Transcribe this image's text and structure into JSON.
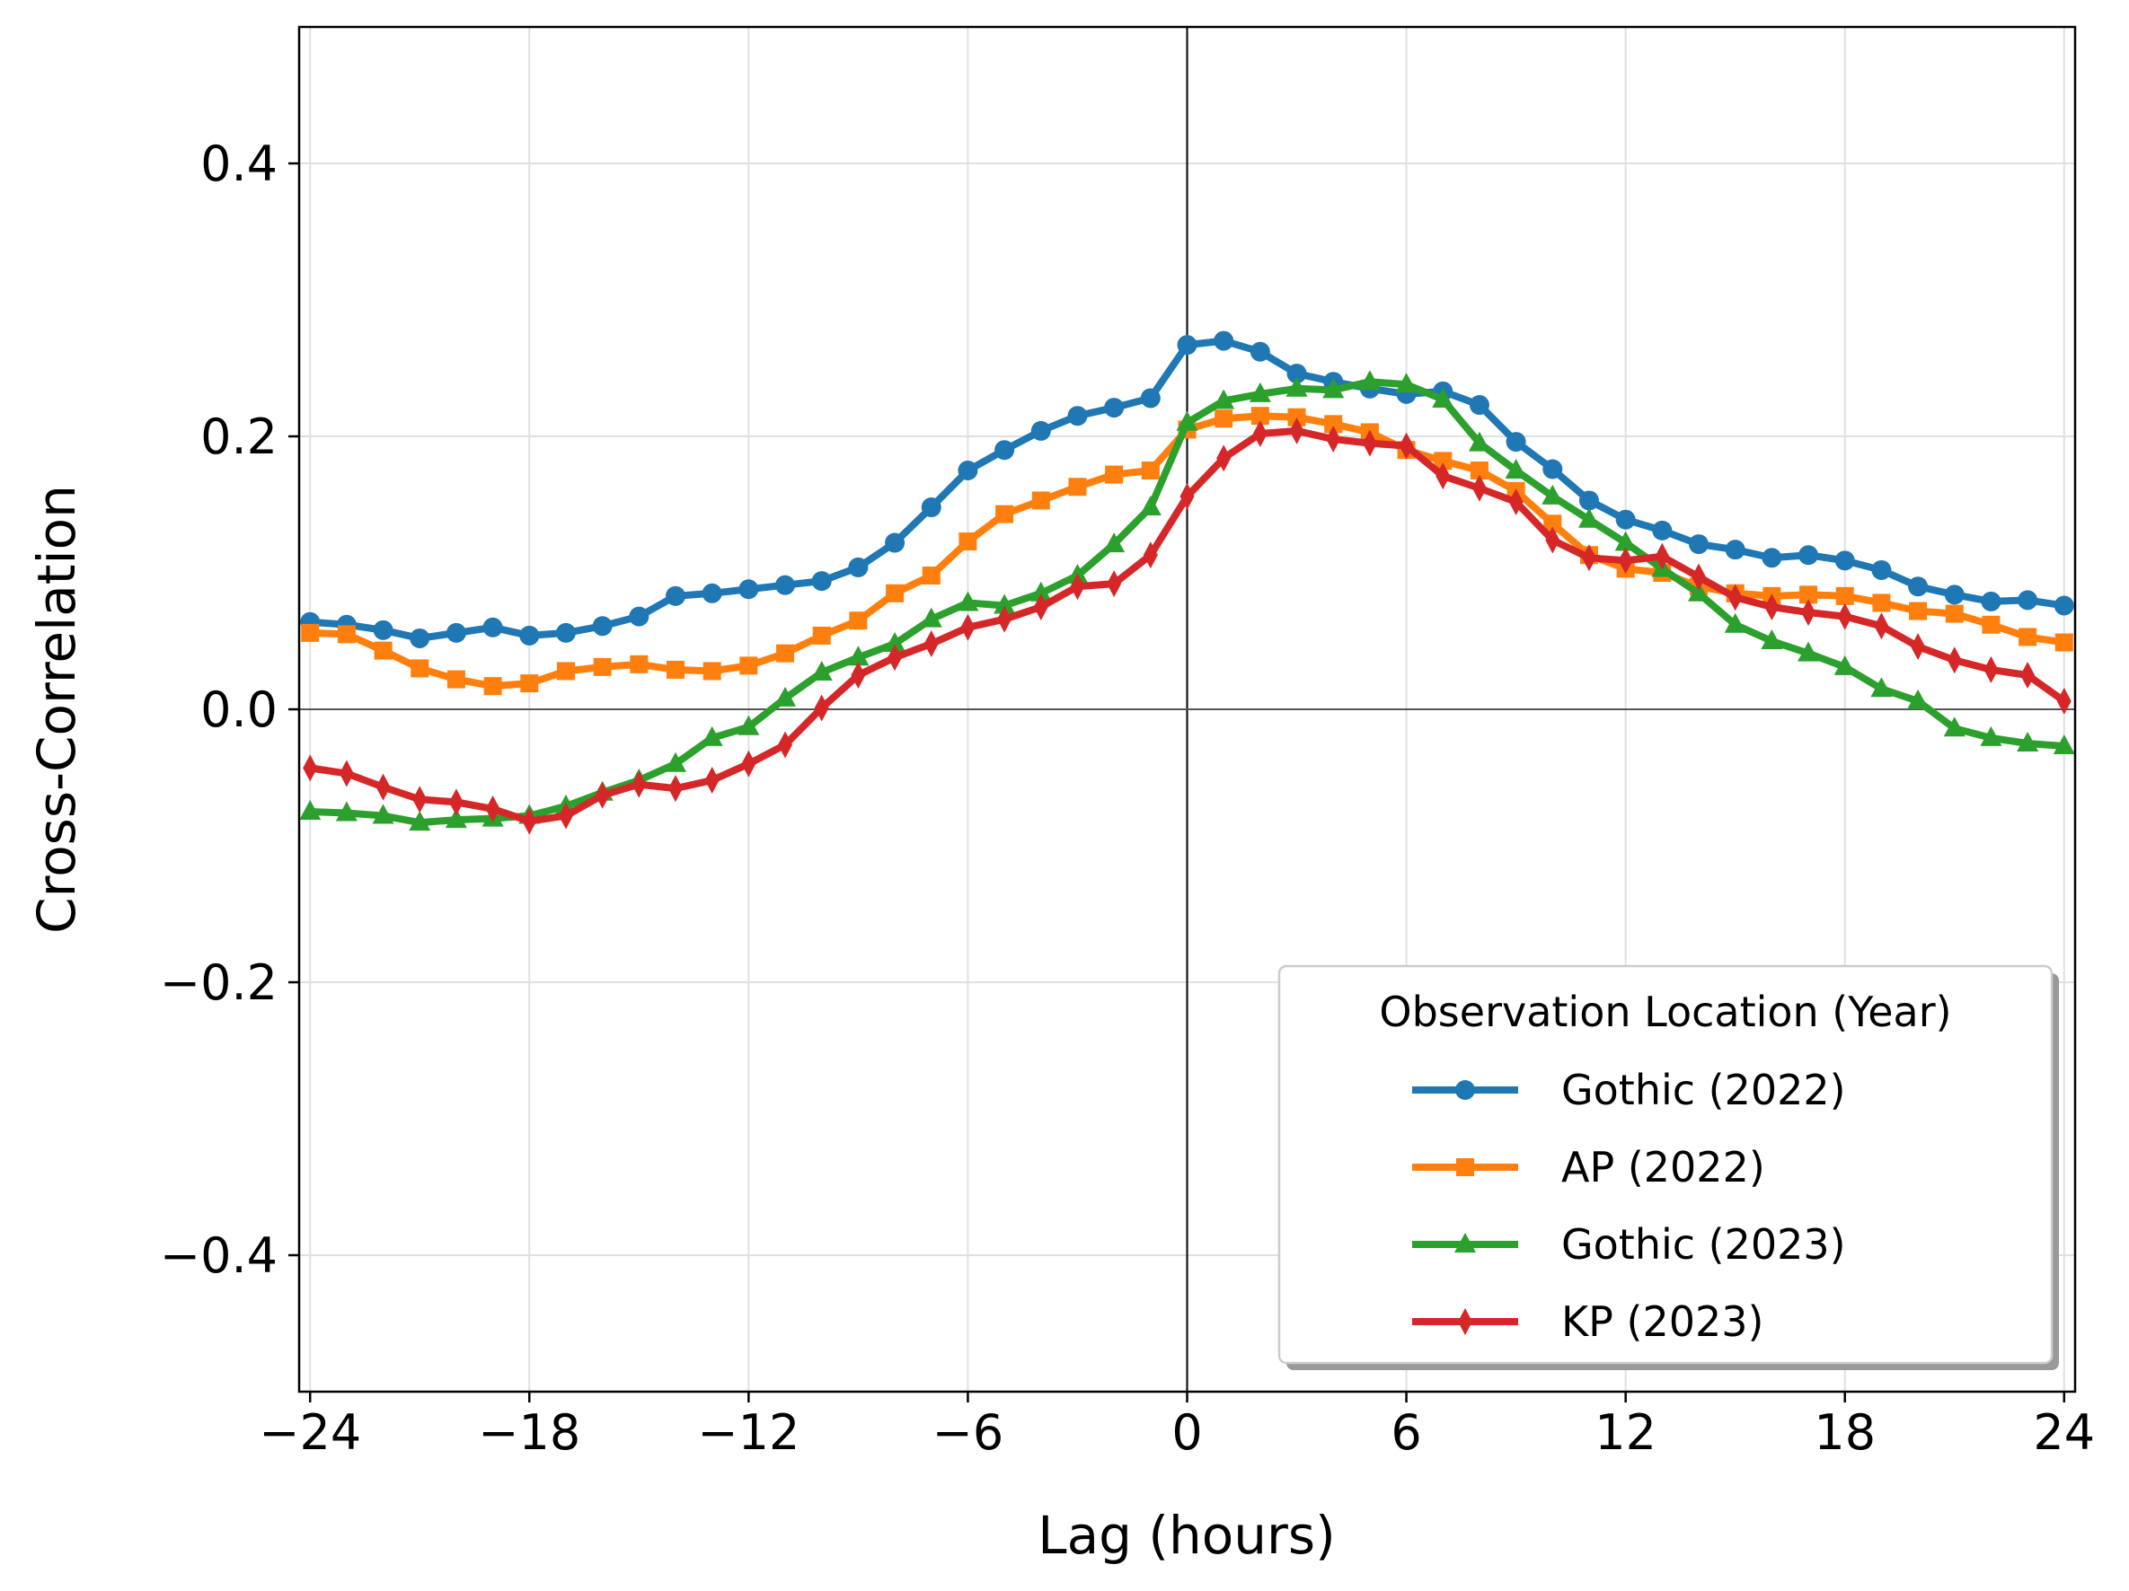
{
  "chart_data": {
    "type": "line",
    "title": "",
    "xlabel": "Lag (hours)",
    "ylabel": "Cross-Correlation",
    "xlim": [
      -24.3,
      24.3
    ],
    "ylim": [
      -0.5,
      0.5
    ],
    "xticks": [
      -24,
      -18,
      -12,
      -6,
      0,
      6,
      12,
      18,
      24
    ],
    "xtick_labels": [
      "−24",
      "−18",
      "−12",
      "−6",
      "0",
      "6",
      "12",
      "18",
      "24"
    ],
    "yticks": [
      -0.4,
      -0.2,
      0.0,
      0.2,
      0.4
    ],
    "ytick_labels": [
      "−0.4",
      "−0.2",
      "0.0",
      "0.2",
      "0.4"
    ],
    "grid": true,
    "reference_lines": {
      "x": 0,
      "y": 0
    },
    "legend": {
      "title": "Observation Location (Year)",
      "placement": "lower-right"
    },
    "x": [
      -24,
      -23,
      -22,
      -21,
      -20,
      -19,
      -18,
      -17,
      -16,
      -15,
      -14,
      -13,
      -12,
      -11,
      -10,
      -9,
      -8,
      -7,
      -6,
      -5,
      -4,
      -3,
      -2,
      -1,
      0,
      1,
      2,
      3,
      4,
      5,
      6,
      7,
      8,
      9,
      10,
      11,
      12,
      13,
      14,
      15,
      16,
      17,
      18,
      19,
      20,
      21,
      22,
      23,
      24
    ],
    "series": [
      {
        "name": "Gothic (2022)",
        "color": "#1f77b4",
        "marker": "circle",
        "values": [
          0.064,
          0.062,
          0.058,
          0.052,
          0.056,
          0.06,
          0.054,
          0.056,
          0.061,
          0.068,
          0.083,
          0.085,
          0.088,
          0.091,
          0.094,
          0.104,
          0.122,
          0.148,
          0.175,
          0.19,
          0.204,
          0.215,
          0.221,
          0.228,
          0.267,
          0.27,
          0.262,
          0.246,
          0.24,
          0.235,
          0.231,
          0.233,
          0.223,
          0.196,
          0.176,
          0.153,
          0.139,
          0.131,
          0.121,
          0.117,
          0.111,
          0.113,
          0.109,
          0.102,
          0.09,
          0.084,
          0.079,
          0.08,
          0.076
        ]
      },
      {
        "name": "AP (2022)",
        "color": "#ff7f0e",
        "marker": "square",
        "values": [
          0.056,
          0.055,
          0.043,
          0.03,
          0.022,
          0.017,
          0.019,
          0.028,
          0.031,
          0.033,
          0.029,
          0.028,
          0.032,
          0.041,
          0.054,
          0.065,
          0.085,
          0.098,
          0.123,
          0.143,
          0.153,
          0.163,
          0.172,
          0.175,
          0.205,
          0.213,
          0.215,
          0.214,
          0.209,
          0.203,
          0.19,
          0.182,
          0.175,
          0.16,
          0.136,
          0.113,
          0.103,
          0.1,
          0.09,
          0.085,
          0.083,
          0.084,
          0.083,
          0.078,
          0.072,
          0.07,
          0.062,
          0.053,
          0.049
        ]
      },
      {
        "name": "Gothic (2023)",
        "color": "#2ca02c",
        "marker": "triangle",
        "values": [
          -0.075,
          -0.076,
          -0.078,
          -0.083,
          -0.081,
          -0.08,
          -0.078,
          -0.071,
          -0.061,
          -0.052,
          -0.04,
          -0.021,
          -0.013,
          0.008,
          0.027,
          0.038,
          0.048,
          0.066,
          0.078,
          0.076,
          0.085,
          0.098,
          0.121,
          0.148,
          0.21,
          0.226,
          0.231,
          0.235,
          0.234,
          0.24,
          0.238,
          0.227,
          0.195,
          0.175,
          0.156,
          0.139,
          0.122,
          0.103,
          0.085,
          0.062,
          0.05,
          0.041,
          0.031,
          0.015,
          0.006,
          -0.014,
          -0.021,
          -0.025,
          -0.027
        ]
      },
      {
        "name": "KP (2023)",
        "color": "#d62728",
        "marker": "diamond",
        "values": [
          -0.043,
          -0.047,
          -0.057,
          -0.066,
          -0.068,
          -0.073,
          -0.082,
          -0.078,
          -0.063,
          -0.055,
          -0.058,
          -0.052,
          -0.04,
          -0.026,
          0.001,
          0.025,
          0.038,
          0.048,
          0.06,
          0.066,
          0.075,
          0.09,
          0.092,
          0.113,
          0.156,
          0.184,
          0.202,
          0.204,
          0.198,
          0.195,
          0.193,
          0.171,
          0.162,
          0.152,
          0.124,
          0.111,
          0.109,
          0.112,
          0.097,
          0.082,
          0.075,
          0.071,
          0.068,
          0.061,
          0.046,
          0.036,
          0.029,
          0.025,
          0.006
        ]
      }
    ]
  }
}
